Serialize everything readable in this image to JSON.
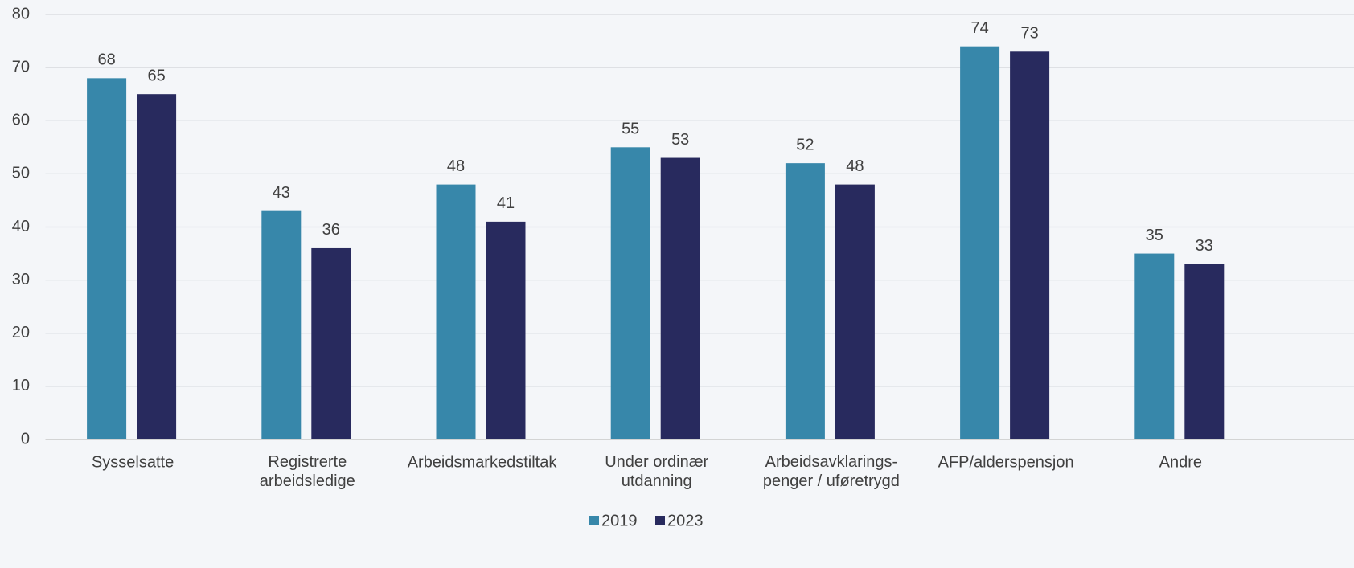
{
  "chart_data": {
    "type": "bar",
    "categories": [
      "Sysselsatte",
      "Registrerte\narbeidsledige",
      "Arbeidsmarkedstiltak",
      "Under ordinær\nutdanning",
      "Arbeidsavklarings-\npenger / uføretrygd",
      "AFP/alderspensjon",
      "Andre"
    ],
    "series": [
      {
        "name": "2019",
        "color": "#3787aa",
        "values": [
          68,
          43,
          48,
          55,
          52,
          74,
          35
        ]
      },
      {
        "name": "2023",
        "color": "#282a5e",
        "values": [
          65,
          36,
          41,
          53,
          48,
          73,
          33
        ]
      }
    ],
    "ylim": [
      0,
      80
    ],
    "yticks": [
      0,
      10,
      20,
      30,
      40,
      50,
      60,
      70,
      80
    ],
    "grid": true,
    "legend": "bottom"
  }
}
